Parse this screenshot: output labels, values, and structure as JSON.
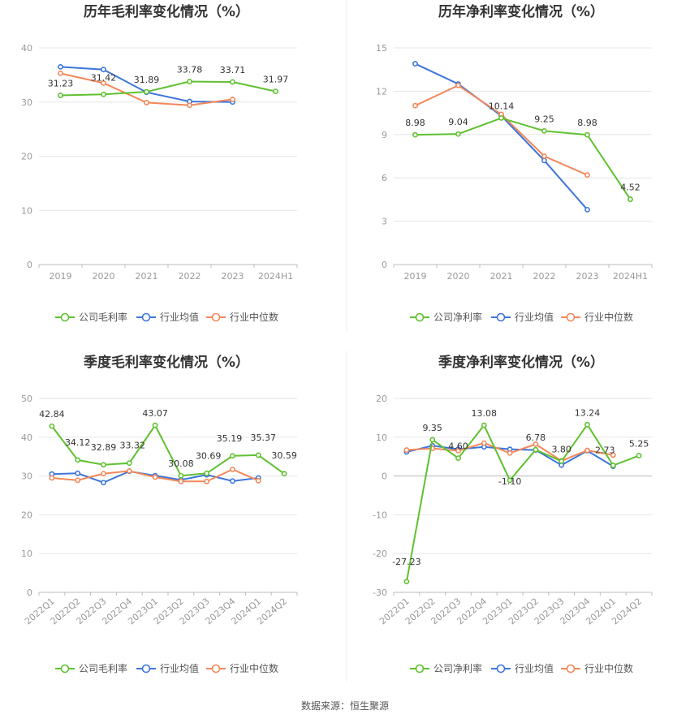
{
  "source": "数据来源：恒生聚源",
  "colors": {
    "company": "#5fc130",
    "avg": "#3d75d9",
    "median": "#f2875a",
    "grid": "#e6e6e6",
    "axis": "#bbbbbb",
    "divider": "#eeeeee"
  },
  "chart_data": [
    {
      "type": "line",
      "title": "历年毛利率变化情况（%）",
      "categories": [
        "2019",
        "2020",
        "2021",
        "2022",
        "2023",
        "2024H1"
      ],
      "ylim": [
        0,
        40
      ],
      "yticks": [
        0,
        10,
        20,
        30,
        40
      ],
      "series": [
        {
          "name": "公司毛利率",
          "key": "company",
          "values": [
            31.23,
            31.42,
            31.89,
            33.78,
            33.71,
            31.97
          ],
          "labels": [
            "31.23",
            "31.42",
            "31.89",
            "33.78",
            "33.71",
            "31.97"
          ]
        },
        {
          "name": "行业均值",
          "key": "avg",
          "values": [
            36.5,
            36.0,
            31.8,
            30.1,
            30.0,
            null
          ],
          "labels": []
        },
        {
          "name": "行业中位数",
          "key": "median",
          "values": [
            35.3,
            33.5,
            29.9,
            29.4,
            30.5,
            null
          ],
          "labels": []
        }
      ]
    },
    {
      "type": "line",
      "title": "历年净利率变化情况（%）",
      "categories": [
        "2019",
        "2020",
        "2021",
        "2022",
        "2023",
        "2024H1"
      ],
      "ylim": [
        0,
        15
      ],
      "yticks": [
        0,
        3,
        6,
        9,
        12,
        15
      ],
      "series": [
        {
          "name": "公司净利率",
          "key": "company",
          "values": [
            8.98,
            9.04,
            10.14,
            9.25,
            8.98,
            4.52
          ],
          "labels": [
            "8.98",
            "9.04",
            "10.14",
            "9.25",
            "8.98",
            "4.52"
          ]
        },
        {
          "name": "行业均值",
          "key": "avg",
          "values": [
            13.9,
            12.5,
            10.3,
            7.2,
            3.8,
            null
          ],
          "labels": []
        },
        {
          "name": "行业中位数",
          "key": "median",
          "values": [
            11.0,
            12.4,
            10.4,
            7.5,
            6.2,
            null
          ],
          "labels": []
        }
      ]
    },
    {
      "type": "line",
      "title": "季度毛利率变化情况（%）",
      "categories": [
        "2022Q1",
        "2022Q2",
        "2022Q3",
        "2022Q4",
        "2023Q1",
        "2023Q2",
        "2023Q3",
        "2023Q4",
        "2024Q1",
        "2024Q2"
      ],
      "ylim": [
        0,
        50
      ],
      "yticks": [
        0,
        10,
        20,
        30,
        40,
        50
      ],
      "series": [
        {
          "name": "公司毛利率",
          "key": "company",
          "values": [
            42.84,
            34.12,
            32.89,
            33.32,
            43.07,
            30.08,
            30.69,
            35.19,
            35.37,
            30.59
          ],
          "labels": [
            "42.84",
            "34.12",
            "32.89",
            "33.32",
            "43.07",
            "30.08",
            "30.69",
            "35.19",
            "35.37",
            "30.59"
          ]
        },
        {
          "name": "行业均值",
          "key": "avg",
          "values": [
            30.5,
            30.7,
            28.3,
            31.2,
            30.1,
            29.0,
            30.3,
            28.7,
            29.5,
            null
          ],
          "labels": []
        },
        {
          "name": "行业中位数",
          "key": "median",
          "values": [
            29.5,
            28.9,
            30.6,
            31.3,
            29.7,
            28.6,
            28.6,
            31.7,
            28.8,
            null
          ],
          "labels": []
        }
      ]
    },
    {
      "type": "line",
      "title": "季度净利率变化情况（%）",
      "categories": [
        "2022Q1",
        "2022Q2",
        "2022Q3",
        "2022Q4",
        "2023Q1",
        "2023Q2",
        "2023Q3",
        "2023Q4",
        "2024Q1",
        "2024Q2"
      ],
      "ylim": [
        -30,
        20
      ],
      "yticks": [
        -30,
        -20,
        -10,
        0,
        10,
        20
      ],
      "series": [
        {
          "name": "公司净利率",
          "key": "company",
          "values": [
            -27.23,
            9.35,
            4.6,
            13.08,
            -1.1,
            6.78,
            3.8,
            13.24,
            2.73,
            5.25
          ],
          "labels": [
            "-27.23",
            "9.35",
            "4.60",
            "13.08",
            "-1.10",
            "6.78",
            "3.80",
            "13.24",
            "2.73",
            "5.25"
          ]
        },
        {
          "name": "行业均值",
          "key": "avg",
          "values": [
            6.2,
            7.8,
            6.9,
            7.5,
            6.9,
            6.7,
            2.8,
            6.5,
            2.5,
            null
          ],
          "labels": []
        },
        {
          "name": "行业中位数",
          "key": "median",
          "values": [
            6.7,
            7.1,
            6.5,
            8.5,
            5.9,
            8.2,
            3.9,
            6.6,
            5.4,
            null
          ],
          "labels": []
        }
      ]
    }
  ]
}
